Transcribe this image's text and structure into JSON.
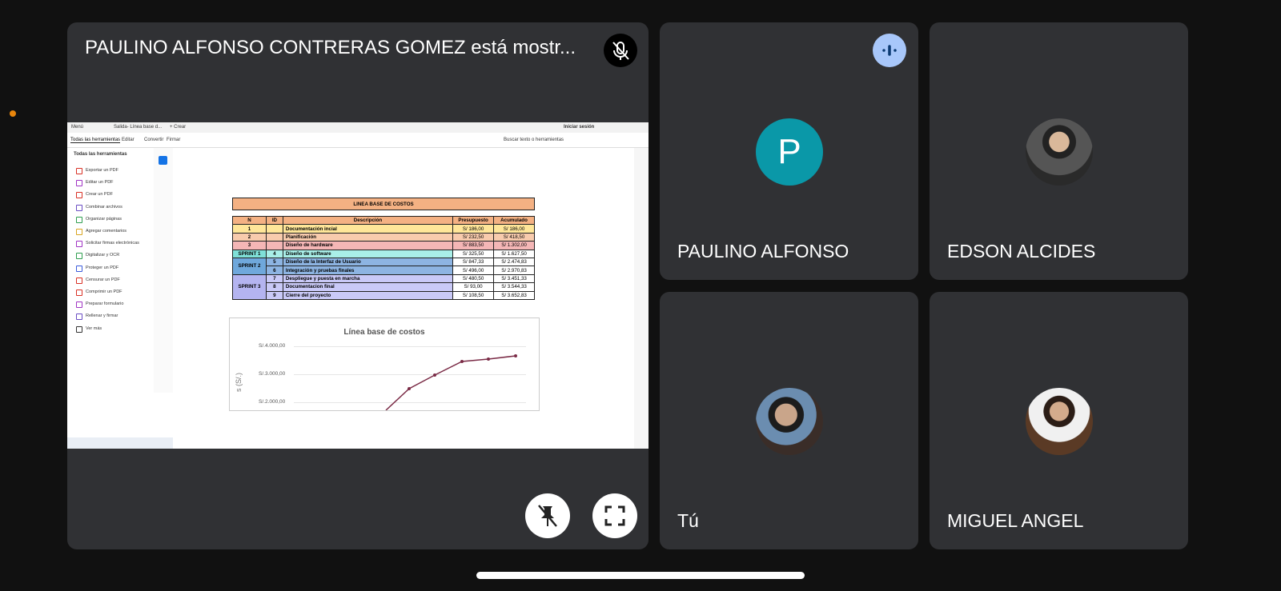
{
  "presenter": {
    "title": "PAULINO ALFONSO CONTRERAS GOMEZ está mostr..."
  },
  "participants": [
    {
      "name": "PAULINO ALFONSO",
      "initial": "P"
    },
    {
      "name": "EDSON ALCIDES"
    },
    {
      "name": "Tú"
    },
    {
      "name": "MIGUEL ANGEL"
    }
  ],
  "viewer": {
    "top_bar": {
      "menu": "Menú",
      "tab": "Salida- Línea base d...",
      "new": "+ Crear",
      "sign_in": "Iniciar sesión"
    },
    "tabs": [
      "Todas las herramientas",
      "Editar",
      "Convertir",
      "Firmar"
    ],
    "search": "Buscar texto o herramientas",
    "panel_title": "Todas las herramientas",
    "tools": [
      "Exportar un PDF",
      "Editar un PDF",
      "Crear un PDF",
      "Combinar archivos",
      "Organizar páginas",
      "Agregar comentarios",
      "Solicitar firmas electrónicas",
      "Digitalizar y OCR",
      "Proteger un PDF",
      "Censurar un PDF",
      "Comprimir un PDF",
      "Preparar formulario",
      "Rellenar y firmar",
      "Ver más"
    ],
    "table": {
      "title": "LINEA BASE DE COSTOS",
      "headers": [
        "N",
        "ID",
        "Descripción",
        "Presupuesto",
        "Acumulado"
      ],
      "plain_rows": [
        {
          "n": "1",
          "desc": "Documentación incial",
          "budget": "S/ 186,00",
          "cumulative": "S/ 186,00"
        },
        {
          "n": "2",
          "desc": "Planificación",
          "budget": "S/ 232,50",
          "cumulative": "S/ 418,50"
        },
        {
          "n": "3",
          "desc": "Diseño de hardware",
          "budget": "S/ 883,50",
          "cumulative": "S/ 1.302,00"
        }
      ],
      "sprints": [
        {
          "label": "SPRINT 1",
          "rows": [
            {
              "id": "4",
              "desc": "Diseño de software",
              "budget": "S/ 325,50",
              "cumulative": "S/ 1.627,50"
            }
          ]
        },
        {
          "label": "SPRINT 2",
          "rows": [
            {
              "id": "5",
              "desc": "Diseño de la Interfaz de Usuario",
              "budget": "S/ 847,33",
              "cumulative": "S/ 2.474,83"
            },
            {
              "id": "6",
              "desc": "Integración y pruebas finales",
              "budget": "S/ 496,00",
              "cumulative": "S/ 2.970,83"
            }
          ]
        },
        {
          "label": "SPRINT 3",
          "rows": [
            {
              "id": "7",
              "desc": "Despliegue y puesta en marcha",
              "budget": "S/ 480,50",
              "cumulative": "S/ 3.451,33"
            },
            {
              "id": "8",
              "desc": "Documentacion final",
              "budget": "S/ 93,00",
              "cumulative": "S/ 3.544,33"
            },
            {
              "id": "9",
              "desc": "Cierre del proyecto",
              "budget": "S/ 108,50",
              "cumulative": "S/ 3.652,83"
            }
          ]
        }
      ]
    },
    "chart": {
      "title": "Línea base de costos",
      "ticks": [
        "S/.4.000,00",
        "S/.3.000,00",
        "S/.2.000,00"
      ],
      "axis_label": "s (S/.)"
    }
  }
}
